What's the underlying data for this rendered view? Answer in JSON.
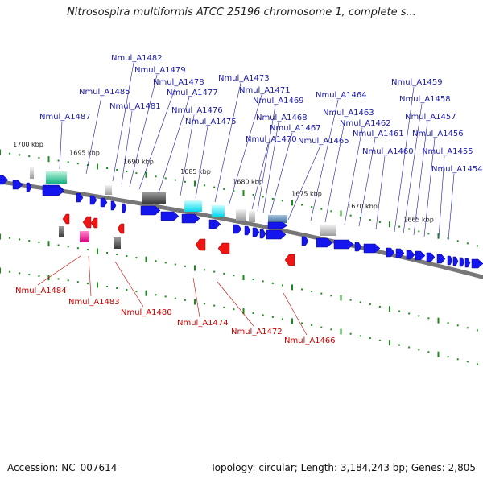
{
  "title": "Nitrosospira multiformis ATCC 25196 chromosome 1, complete s...",
  "footer": {
    "accession": "Accession: NC_007614",
    "summary": "Topology: circular; Length: 3,184,243 bp; Genes: 2,805"
  },
  "colors": {
    "forward_gene": "#1515ee",
    "reverse_gene": "#ee1515",
    "forward_label": "#1a1aa8",
    "reverse_label": "#cc0000",
    "tick": "#1a8a1a",
    "backbone": "#777777"
  },
  "kbp_labels": [
    "1700 kbp",
    "1695 kbp",
    "1690 kbp",
    "1685 kbp",
    "1680 kbp",
    "1675 kbp",
    "1670 kbp",
    "1665 kbp"
  ],
  "forward_gene_labels": [
    "Nmul_A1487",
    "Nmul_A1485",
    "Nmul_A1482",
    "Nmul_A1481",
    "Nmul_A1479",
    "Nmul_A1478",
    "Nmul_A1477",
    "Nmul_A1476",
    "Nmul_A1475",
    "Nmul_A1473",
    "Nmul_A1471",
    "Nmul_A1470",
    "Nmul_A1469",
    "Nmul_A1468",
    "Nmul_A1467",
    "Nmul_A1465",
    "Nmul_A1464",
    "Nmul_A1463",
    "Nmul_A1462",
    "Nmul_A1461",
    "Nmul_A1460",
    "Nmul_A1459",
    "Nmul_A1458",
    "Nmul_A1457",
    "Nmul_A1456",
    "Nmul_A1455",
    "Nmul_A1454"
  ],
  "reverse_gene_labels": [
    "Nmul_A1484",
    "Nmul_A1483",
    "Nmul_A1480",
    "Nmul_A1474",
    "Nmul_A1472",
    "Nmul_A1466"
  ]
}
